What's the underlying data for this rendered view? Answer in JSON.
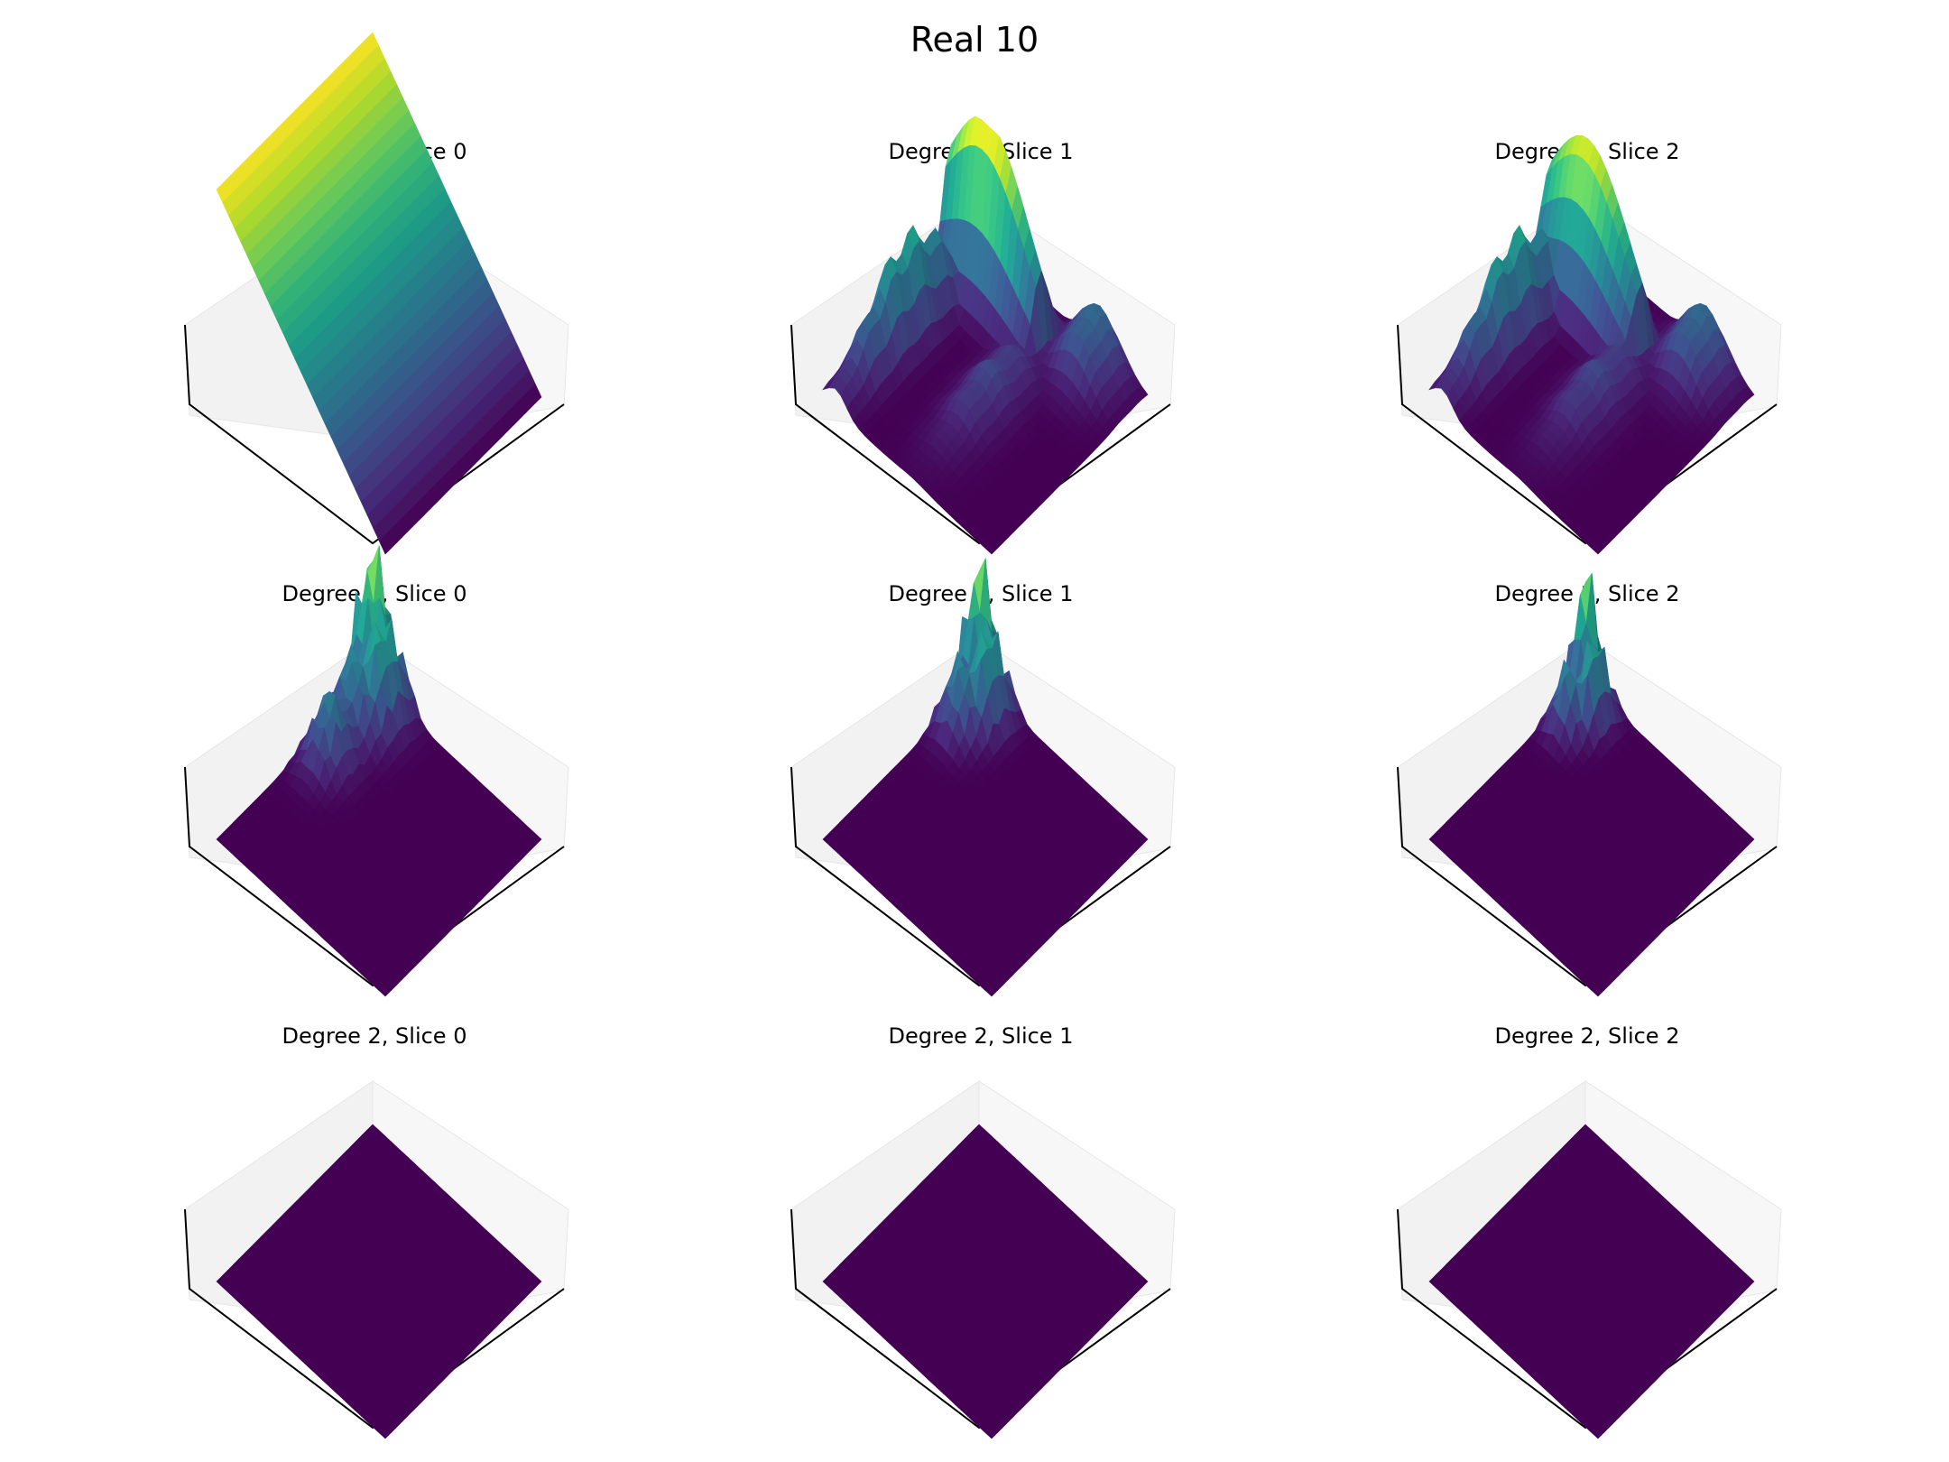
{
  "figure": {
    "title": "Real 10"
  },
  "chart_data": [
    {
      "type": "surface3d",
      "title": "Degree 0, Slice 0",
      "degree": 0,
      "slice": 0,
      "colormap": "viridis",
      "shape": "ramp",
      "peak": 1.0,
      "axes_visible": false
    },
    {
      "type": "surface3d",
      "title": "Degree 0, Slice 1",
      "degree": 0,
      "slice": 1,
      "colormap": "viridis",
      "shape": "ridges",
      "peak": 0.85,
      "axes_visible": false
    },
    {
      "type": "surface3d",
      "title": "Degree 0, Slice 2",
      "degree": 0,
      "slice": 2,
      "colormap": "viridis",
      "shape": "ridges",
      "peak": 0.85,
      "axes_visible": false
    },
    {
      "type": "surface3d",
      "title": "Degree 1, Slice 0",
      "degree": 1,
      "slice": 0,
      "colormap": "viridis",
      "shape": "spikes",
      "peak": 0.8,
      "axes_visible": false
    },
    {
      "type": "surface3d",
      "title": "Degree 1, Slice 1",
      "degree": 1,
      "slice": 1,
      "colormap": "viridis",
      "shape": "spikes",
      "peak": 0.75,
      "axes_visible": false
    },
    {
      "type": "surface3d",
      "title": "Degree 1, Slice 2",
      "degree": 1,
      "slice": 2,
      "colormap": "viridis",
      "shape": "spikes",
      "peak": 0.7,
      "axes_visible": false
    },
    {
      "type": "surface3d",
      "title": "Degree 2, Slice 0",
      "degree": 2,
      "slice": 0,
      "colormap": "viridis",
      "shape": "flat",
      "peak": 0.0,
      "axes_visible": false
    },
    {
      "type": "surface3d",
      "title": "Degree 2, Slice 1",
      "degree": 2,
      "slice": 1,
      "colormap": "viridis",
      "shape": "flat",
      "peak": 0.0,
      "axes_visible": false
    },
    {
      "type": "surface3d",
      "title": "Degree 2, Slice 2",
      "degree": 2,
      "slice": 2,
      "colormap": "viridis",
      "shape": "flat",
      "peak": 0.0,
      "axes_visible": false
    }
  ]
}
